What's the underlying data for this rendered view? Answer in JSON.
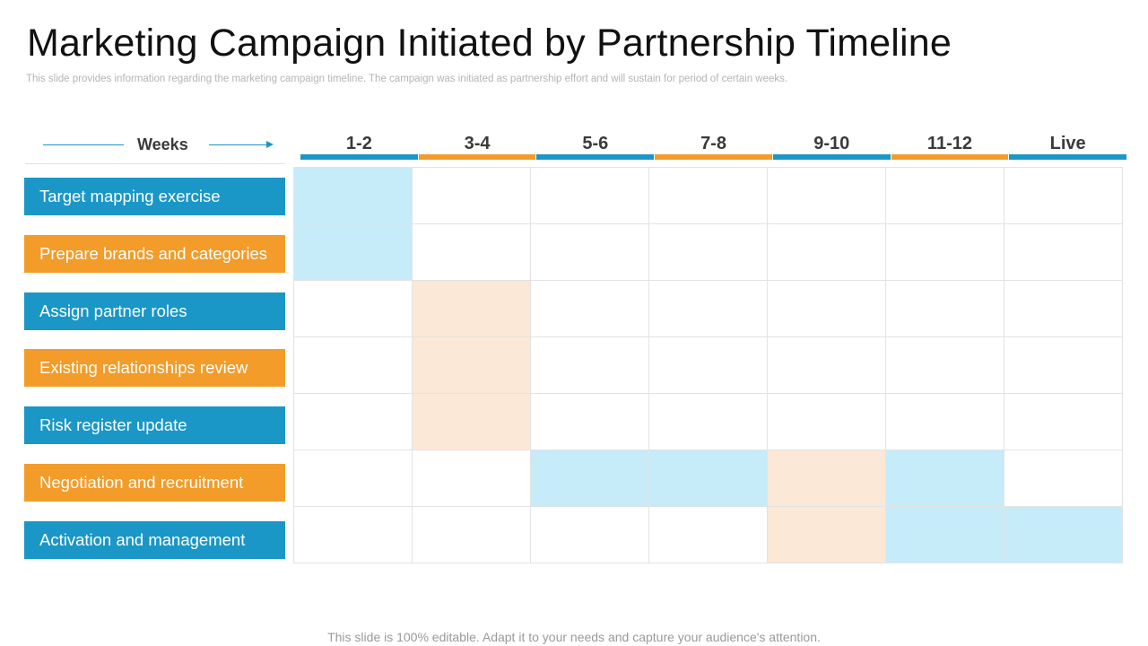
{
  "title": "Marketing Campaign Initiated by Partnership Timeline",
  "subtitle": "This slide provides information regarding the marketing campaign timeline. The campaign was initiated as partnership effort and will sustain for period of certain weeks.",
  "weeks_label": "Weeks",
  "colors": {
    "blue": "#1a97c6",
    "orange": "#f39c29",
    "light_blue": "#c6ebf9",
    "light_orange": "#fbe8d6",
    "arrow": "#1a97c6"
  },
  "columns": [
    {
      "label": "1-2",
      "color": "blue"
    },
    {
      "label": "3-4",
      "color": "orange"
    },
    {
      "label": "5-6",
      "color": "blue"
    },
    {
      "label": "7-8",
      "color": "orange"
    },
    {
      "label": "9-10",
      "color": "blue"
    },
    {
      "label": "11-12",
      "color": "orange"
    },
    {
      "label": "Live",
      "color": "blue"
    }
  ],
  "rows": [
    {
      "label": "Target mapping exercise",
      "color": "blue",
      "cells": [
        "light_blue",
        "",
        "",
        "",
        "",
        "",
        ""
      ]
    },
    {
      "label": "Prepare brands and categories",
      "color": "orange",
      "cells": [
        "light_blue",
        "",
        "",
        "",
        "",
        "",
        ""
      ]
    },
    {
      "label": "Assign partner roles",
      "color": "blue",
      "cells": [
        "",
        "light_orange",
        "",
        "",
        "",
        "",
        ""
      ]
    },
    {
      "label": "Existing relationships review",
      "color": "orange",
      "cells": [
        "",
        "light_orange",
        "",
        "",
        "",
        "",
        ""
      ]
    },
    {
      "label": "Risk register update",
      "color": "blue",
      "cells": [
        "",
        "light_orange",
        "",
        "",
        "",
        "",
        ""
      ]
    },
    {
      "label": "Negotiation and recruitment",
      "color": "orange",
      "cells": [
        "",
        "",
        "light_blue",
        "light_blue",
        "light_orange",
        "light_blue",
        ""
      ]
    },
    {
      "label": "Activation and management",
      "color": "blue",
      "cells": [
        "",
        "",
        "",
        "",
        "light_orange",
        "light_blue",
        "light_blue"
      ]
    }
  ],
  "footer": "This slide is 100% editable. Adapt it to your needs and capture your audience's attention."
}
